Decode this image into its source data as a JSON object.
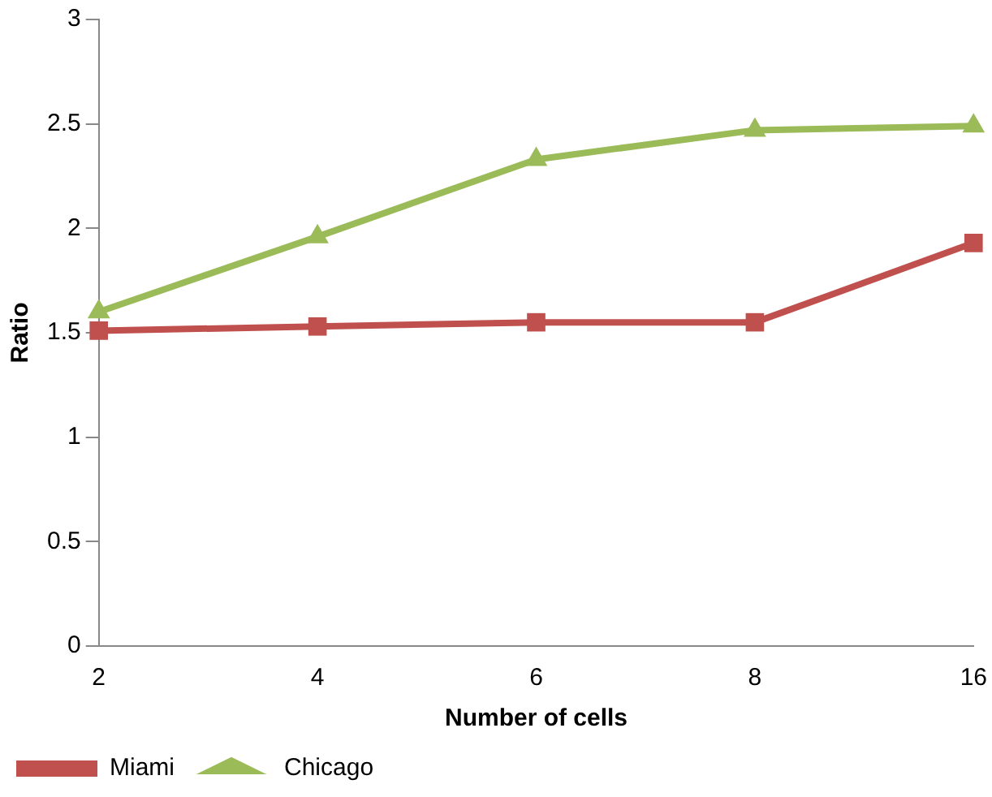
{
  "chart_data": {
    "type": "line",
    "xlabel": "Number of cells",
    "ylabel": "Ratio",
    "categories": [
      "2",
      "4",
      "6",
      "8",
      "16"
    ],
    "series": [
      {
        "name": "Miami",
        "color": "#c0504d",
        "marker": "square",
        "values": [
          1.51,
          1.53,
          1.55,
          1.55,
          1.93
        ]
      },
      {
        "name": "Chicago",
        "color": "#9bbb59",
        "marker": "triangle",
        "values": [
          1.6,
          1.96,
          2.33,
          2.47,
          2.49
        ]
      }
    ],
    "ylim": [
      0,
      3
    ],
    "yticks": [
      0,
      0.5,
      1,
      1.5,
      2,
      2.5,
      3
    ],
    "grid": false,
    "legend": "bottom"
  }
}
